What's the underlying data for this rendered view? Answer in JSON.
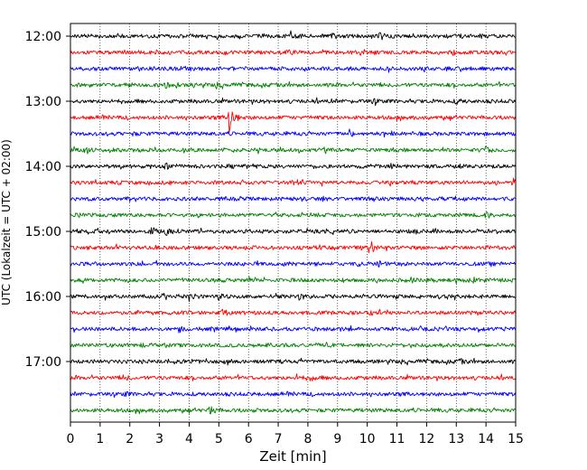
{
  "chart_data": {
    "type": "line",
    "title": "",
    "xlabel": "Zeit  [min]",
    "ylabel": "UTC (Lokalzeit = UTC + 02:00)",
    "xlim": [
      0,
      15
    ],
    "x_ticks": [
      "0",
      "1",
      "2",
      "3",
      "4",
      "5",
      "6",
      "7",
      "8",
      "9",
      "10",
      "11",
      "12",
      "13",
      "14",
      "15"
    ],
    "y_tick_labels": [
      "12:00",
      "13:00",
      "14:00",
      "15:00",
      "16:00",
      "17:00"
    ],
    "grid": "vertical-dotted",
    "trace_interval_minutes": 15,
    "trace_colors": [
      "#000000",
      "#ff0000",
      "#0000ff",
      "#008000"
    ],
    "series": [
      {
        "start": "12:00",
        "color": "#000000",
        "events": [
          {
            "t": 7.4,
            "amp": 0.5
          },
          {
            "t": 8.8,
            "amp": 0.45
          },
          {
            "t": 10.4,
            "amp": 0.5
          }
        ]
      },
      {
        "start": "12:15",
        "color": "#ff0000",
        "events": [
          {
            "t": 7.2,
            "amp": 0.55
          },
          {
            "t": 9.8,
            "amp": 0.4
          },
          {
            "t": 12.9,
            "amp": 0.3
          }
        ]
      },
      {
        "start": "12:30",
        "color": "#0000ff",
        "events": [
          {
            "t": 7.0,
            "amp": 0.25
          },
          {
            "t": 12.5,
            "amp": 0.25
          }
        ]
      },
      {
        "start": "12:45",
        "color": "#008000",
        "events": [
          {
            "t": 3.2,
            "amp": 0.6
          },
          {
            "t": 3.6,
            "amp": 0.45
          },
          {
            "t": 4.9,
            "amp": 0.45
          }
        ]
      },
      {
        "start": "13:00",
        "color": "#000000",
        "events": [
          {
            "t": 10.2,
            "amp": 0.4
          },
          {
            "t": 13.0,
            "amp": 0.4
          }
        ]
      },
      {
        "start": "13:15",
        "color": "#ff0000",
        "events": [
          {
            "t": 5.35,
            "amp": 3.4
          }
        ]
      },
      {
        "start": "13:30",
        "color": "#0000ff",
        "events": [
          {
            "t": 2.0,
            "amp": 0.3
          },
          {
            "t": 9.4,
            "amp": 0.55
          }
        ]
      },
      {
        "start": "13:45",
        "color": "#008000",
        "events": [
          {
            "t": 0.4,
            "amp": 0.55
          },
          {
            "t": 14.0,
            "amp": 0.5
          }
        ]
      },
      {
        "start": "14:00",
        "color": "#000000",
        "events": [
          {
            "t": 3.2,
            "amp": 0.45
          },
          {
            "t": 10.8,
            "amp": 0.45
          }
        ]
      },
      {
        "start": "14:15",
        "color": "#ff0000",
        "events": [
          {
            "t": 7.5,
            "amp": 0.35
          },
          {
            "t": 14.9,
            "amp": 0.6
          }
        ]
      },
      {
        "start": "14:30",
        "color": "#0000ff",
        "events": [
          {
            "t": 7.6,
            "amp": 0.25
          }
        ]
      },
      {
        "start": "14:45",
        "color": "#008000",
        "events": [
          {
            "t": 14.0,
            "amp": 0.5
          }
        ]
      },
      {
        "start": "15:00",
        "color": "#000000",
        "events": [
          {
            "t": 2.7,
            "amp": 0.85
          },
          {
            "t": 3.2,
            "amp": 0.5
          },
          {
            "t": 11.6,
            "amp": 0.3
          }
        ]
      },
      {
        "start": "15:15",
        "color": "#ff0000",
        "events": [
          {
            "t": 10.05,
            "amp": 2.2
          },
          {
            "t": 13.9,
            "amp": 0.35
          }
        ]
      },
      {
        "start": "15:30",
        "color": "#0000ff",
        "events": [
          {
            "t": 10.4,
            "amp": 0.45
          },
          {
            "t": 9.7,
            "amp": 0.3
          }
        ]
      },
      {
        "start": "15:45",
        "color": "#008000",
        "events": [
          {
            "t": 13.0,
            "amp": 0.65
          },
          {
            "t": 13.6,
            "amp": 0.6
          },
          {
            "t": 11.5,
            "amp": 0.3
          }
        ]
      },
      {
        "start": "16:00",
        "color": "#000000",
        "events": [
          {
            "t": 4.0,
            "amp": 0.45
          },
          {
            "t": 4.95,
            "amp": 0.7
          },
          {
            "t": 7.7,
            "amp": 0.4
          }
        ]
      },
      {
        "start": "16:15",
        "color": "#ff0000",
        "events": [
          {
            "t": 5.1,
            "amp": 0.45
          },
          {
            "t": 10.1,
            "amp": 0.35
          }
        ]
      },
      {
        "start": "16:30",
        "color": "#0000ff",
        "events": [
          {
            "t": 3.7,
            "amp": 0.3
          }
        ]
      },
      {
        "start": "16:45",
        "color": "#008000",
        "events": [
          {
            "t": 2.4,
            "amp": 0.3
          }
        ]
      },
      {
        "start": "17:00",
        "color": "#000000",
        "events": [
          {
            "t": 4.1,
            "amp": 0.35
          },
          {
            "t": 13.1,
            "amp": 0.35
          }
        ]
      },
      {
        "start": "17:15",
        "color": "#ff0000",
        "events": [
          {
            "t": 1.8,
            "amp": 0.45
          },
          {
            "t": 7.6,
            "amp": 0.5
          },
          {
            "t": 8.1,
            "amp": 0.4
          }
        ]
      },
      {
        "start": "17:30",
        "color": "#0000ff",
        "events": [
          {
            "t": 1.8,
            "amp": 0.35
          }
        ]
      },
      {
        "start": "17:45",
        "color": "#008000",
        "events": [
          {
            "t": 4.7,
            "amp": 0.85
          }
        ]
      }
    ]
  }
}
